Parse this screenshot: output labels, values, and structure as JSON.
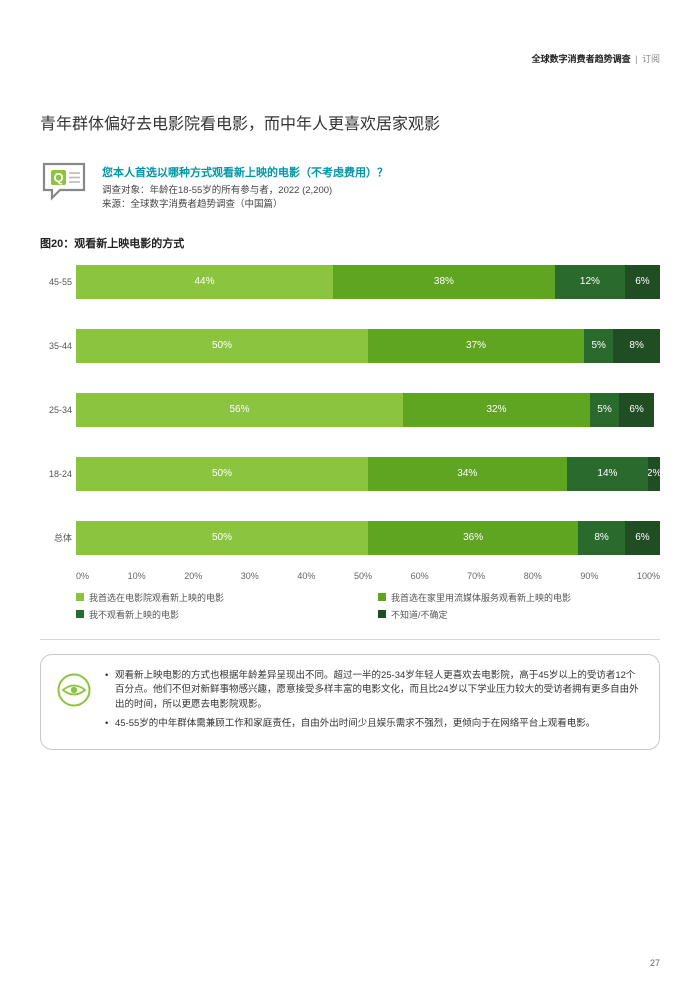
{
  "header": {
    "bold": "全球数字消费者趋势调查",
    "light": "订阅"
  },
  "title": "青年群体偏好去电影院看电影，而中年人更喜欢居家观影",
  "question": {
    "q_text": "您本人首选以哪种方式观看新上映的电影（不考虑费用）？",
    "sub1": "调查对象：年龄在18-55岁的所有参与者，2022 (2,200)",
    "sub2": "来源：全球数字消费者趋势调查（中国篇）"
  },
  "chart": {
    "title": "图20：观看新上映电影的方式",
    "colors": [
      "#8bc53f",
      "#5fa521",
      "#2a6b2d",
      "#214d23"
    ],
    "rows": [
      {
        "label": "45-55",
        "segs": [
          {
            "v": 44,
            "t": "44%"
          },
          {
            "v": 38,
            "t": "38%"
          },
          {
            "v": 12,
            "t": "12%"
          },
          {
            "v": 6,
            "t": "6%"
          }
        ]
      },
      {
        "label": "35-44",
        "segs": [
          {
            "v": 50,
            "t": "50%"
          },
          {
            "v": 37,
            "t": "37%"
          },
          {
            "v": 5,
            "t": "5%"
          },
          {
            "v": 8,
            "t": "8%"
          }
        ]
      },
      {
        "label": "25-34",
        "segs": [
          {
            "v": 56,
            "t": "56%"
          },
          {
            "v": 32,
            "t": "32%"
          },
          {
            "v": 5,
            "t": "5%"
          },
          {
            "v": 6,
            "t": "6%"
          }
        ]
      },
      {
        "label": "18-24",
        "segs": [
          {
            "v": 50,
            "t": "50%"
          },
          {
            "v": 34,
            "t": "34%"
          },
          {
            "v": 14,
            "t": "14%"
          },
          {
            "v": 2,
            "t": "2%"
          }
        ]
      },
      {
        "label": "总体",
        "segs": [
          {
            "v": 50,
            "t": "50%"
          },
          {
            "v": 36,
            "t": "36%"
          },
          {
            "v": 8,
            "t": "8%"
          },
          {
            "v": 6,
            "t": "6%"
          }
        ]
      }
    ],
    "axis": [
      "0%",
      "10%",
      "20%",
      "30%",
      "40%",
      "50%",
      "60%",
      "70%",
      "80%",
      "90%",
      "100%"
    ],
    "legend": [
      "我首选在电影院观看新上映的电影",
      "我首选在家里用流媒体服务观看新上映的电影",
      "我不观看新上映的电影",
      "不知道/不确定"
    ]
  },
  "insights": [
    "观看新上映电影的方式也根据年龄差异呈现出不同。超过一半的25-34岁年轻人更喜欢去电影院，高于45岁以上的受访者12个百分点。他们不但对新鲜事物感兴趣，愿意接受多样丰富的电影文化，而且比24岁以下学业压力较大的受访者拥有更多自由外出的时间，所以更愿去电影院观影。",
    "45-55岁的中年群体需兼顾工作和家庭责任，自由外出时间少且娱乐需求不强烈，更倾向于在网络平台上观看电影。"
  ],
  "page": "27"
}
